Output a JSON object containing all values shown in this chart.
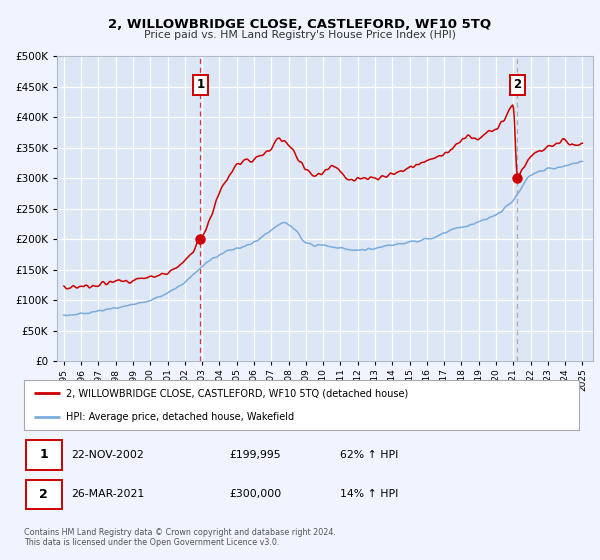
{
  "title": "2, WILLOWBRIDGE CLOSE, CASTLEFORD, WF10 5TQ",
  "subtitle": "Price paid vs. HM Land Registry's House Price Index (HPI)",
  "bg_color": "#f0f4ff",
  "plot_bg_color": "#dce6f5",
  "grid_color": "#ffffff",
  "red_line_color": "#cc0000",
  "blue_line_color": "#7aacdb",
  "sale1_date": 2002.9,
  "sale1_price": 199995,
  "sale2_date": 2021.23,
  "sale2_price": 300000,
  "legend_red": "2, WILLOWBRIDGE CLOSE, CASTLEFORD, WF10 5TQ (detached house)",
  "legend_blue": "HPI: Average price, detached house, Wakefield",
  "table_row1": [
    "1",
    "22-NOV-2002",
    "£199,995",
    "62% ↑ HPI"
  ],
  "table_row2": [
    "2",
    "26-MAR-2021",
    "£300,000",
    "14% ↑ HPI"
  ],
  "footer1": "Contains HM Land Registry data © Crown copyright and database right 2024.",
  "footer2": "This data is licensed under the Open Government Licence v3.0.",
  "ylim": [
    0,
    500000
  ],
  "xlim_start": 1994.6,
  "xlim_end": 2025.6,
  "hpi_keypoints": [
    [
      1995.0,
      75000
    ],
    [
      1996.0,
      78000
    ],
    [
      1997.0,
      82000
    ],
    [
      1998.0,
      87000
    ],
    [
      1999.0,
      93000
    ],
    [
      2000.0,
      100000
    ],
    [
      2001.0,
      112000
    ],
    [
      2002.0,
      130000
    ],
    [
      2003.0,
      155000
    ],
    [
      2004.0,
      175000
    ],
    [
      2005.0,
      185000
    ],
    [
      2006.0,
      195000
    ],
    [
      2007.0,
      215000
    ],
    [
      2007.7,
      227000
    ],
    [
      2008.5,
      210000
    ],
    [
      2009.0,
      193000
    ],
    [
      2010.0,
      190000
    ],
    [
      2011.0,
      185000
    ],
    [
      2012.0,
      182000
    ],
    [
      2013.0,
      185000
    ],
    [
      2014.0,
      190000
    ],
    [
      2015.0,
      195000
    ],
    [
      2016.0,
      200000
    ],
    [
      2017.0,
      210000
    ],
    [
      2018.0,
      220000
    ],
    [
      2019.0,
      228000
    ],
    [
      2020.0,
      240000
    ],
    [
      2021.0,
      265000
    ],
    [
      2022.0,
      305000
    ],
    [
      2023.0,
      315000
    ],
    [
      2024.0,
      320000
    ],
    [
      2025.0,
      328000
    ]
  ],
  "prop_keypoints": [
    [
      1995.0,
      120000
    ],
    [
      1996.0,
      123000
    ],
    [
      1997.0,
      126000
    ],
    [
      1998.0,
      130000
    ],
    [
      1999.0,
      133000
    ],
    [
      2000.0,
      138000
    ],
    [
      2001.0,
      145000
    ],
    [
      2002.0,
      165000
    ],
    [
      2002.9,
      200000
    ],
    [
      2003.5,
      235000
    ],
    [
      2004.0,
      275000
    ],
    [
      2004.5,
      300000
    ],
    [
      2005.0,
      320000
    ],
    [
      2006.0,
      330000
    ],
    [
      2007.0,
      348000
    ],
    [
      2007.5,
      365000
    ],
    [
      2008.0,
      355000
    ],
    [
      2008.5,
      335000
    ],
    [
      2009.0,
      315000
    ],
    [
      2009.5,
      305000
    ],
    [
      2010.0,
      310000
    ],
    [
      2010.5,
      320000
    ],
    [
      2011.0,
      310000
    ],
    [
      2011.5,
      300000
    ],
    [
      2012.0,
      298000
    ],
    [
      2013.0,
      300000
    ],
    [
      2014.0,
      305000
    ],
    [
      2015.0,
      318000
    ],
    [
      2016.0,
      328000
    ],
    [
      2017.0,
      340000
    ],
    [
      2017.5,
      350000
    ],
    [
      2018.0,
      360000
    ],
    [
      2018.5,
      370000
    ],
    [
      2019.0,
      365000
    ],
    [
      2019.5,
      375000
    ],
    [
      2020.0,
      380000
    ],
    [
      2020.5,
      395000
    ],
    [
      2021.0,
      420000
    ],
    [
      2021.23,
      300000
    ],
    [
      2021.5,
      310000
    ],
    [
      2022.0,
      335000
    ],
    [
      2022.5,
      345000
    ],
    [
      2023.0,
      350000
    ],
    [
      2023.5,
      355000
    ],
    [
      2024.0,
      360000
    ],
    [
      2024.5,
      355000
    ],
    [
      2025.0,
      358000
    ]
  ]
}
